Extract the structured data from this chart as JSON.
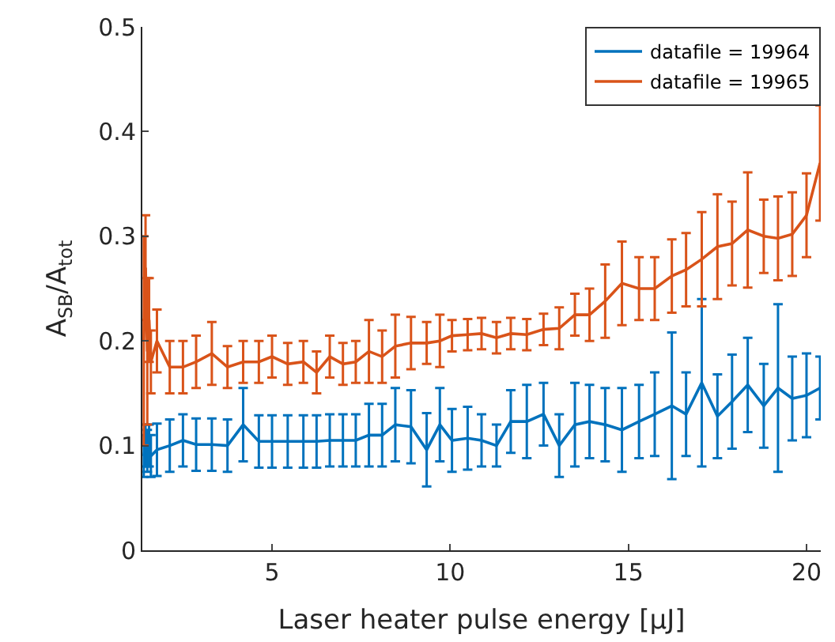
{
  "chart_data": {
    "type": "line",
    "xlabel": "Laser heater pulse energy [μJ]",
    "ylabel": "A$_{SB}$/A$_{tot}$",
    "x": [
      1.4,
      1.45,
      1.5,
      1.55,
      1.6,
      1.77,
      2.13,
      2.5,
      2.87,
      3.31,
      3.75,
      4.19,
      4.63,
      5.0,
      5.44,
      5.88,
      6.25,
      6.62,
      6.99,
      7.35,
      7.72,
      8.09,
      8.46,
      8.9,
      9.34,
      9.71,
      10.05,
      10.49,
      10.88,
      11.3,
      11.7,
      12.15,
      12.62,
      13.06,
      13.5,
      13.91,
      14.35,
      14.82,
      15.3,
      15.74,
      16.22,
      16.62,
      17.06,
      17.5,
      17.91,
      18.35,
      18.8,
      19.2,
      19.6,
      20.0,
      20.38
    ],
    "series": [
      {
        "name": "datafile = 19964",
        "color": "#0072bd",
        "values": [
          0.09,
          0.1,
          0.095,
          0.1,
          0.09,
          0.096,
          0.1,
          0.105,
          0.101,
          0.101,
          0.1,
          0.12,
          0.104,
          0.104,
          0.104,
          0.104,
          0.104,
          0.105,
          0.105,
          0.105,
          0.11,
          0.11,
          0.12,
          0.118,
          0.096,
          0.12,
          0.105,
          0.107,
          0.105,
          0.1,
          0.123,
          0.123,
          0.13,
          0.1,
          0.12,
          0.123,
          0.12,
          0.115,
          0.123,
          0.13,
          0.138,
          0.13,
          0.16,
          0.128,
          0.142,
          0.158,
          0.138,
          0.155,
          0.145,
          0.148,
          0.155
        ],
        "errors": [
          0.02,
          0.02,
          0.02,
          0.02,
          0.02,
          0.025,
          0.025,
          0.025,
          0.025,
          0.025,
          0.025,
          0.035,
          0.025,
          0.025,
          0.025,
          0.025,
          0.025,
          0.025,
          0.025,
          0.025,
          0.03,
          0.03,
          0.035,
          0.035,
          0.035,
          0.035,
          0.03,
          0.03,
          0.025,
          0.02,
          0.03,
          0.035,
          0.03,
          0.03,
          0.04,
          0.035,
          0.035,
          0.04,
          0.035,
          0.04,
          0.07,
          0.04,
          0.08,
          0.04,
          0.045,
          0.045,
          0.04,
          0.08,
          0.04,
          0.04,
          0.03
        ]
      },
      {
        "name": "datafile = 19965",
        "color": "#d95319",
        "values": [
          0.2,
          0.27,
          0.19,
          0.22,
          0.18,
          0.2,
          0.175,
          0.175,
          0.18,
          0.188,
          0.175,
          0.18,
          0.18,
          0.185,
          0.178,
          0.18,
          0.17,
          0.185,
          0.178,
          0.18,
          0.19,
          0.185,
          0.195,
          0.198,
          0.198,
          0.2,
          0.205,
          0.206,
          0.207,
          0.203,
          0.207,
          0.206,
          0.211,
          0.212,
          0.225,
          0.225,
          0.238,
          0.255,
          0.25,
          0.25,
          0.262,
          0.268,
          0.278,
          0.29,
          0.293,
          0.306,
          0.3,
          0.298,
          0.302,
          0.32,
          0.37
        ],
        "errors": [
          0.1,
          0.05,
          0.07,
          0.04,
          0.03,
          0.03,
          0.025,
          0.025,
          0.025,
          0.03,
          0.02,
          0.02,
          0.02,
          0.02,
          0.02,
          0.02,
          0.02,
          0.02,
          0.02,
          0.02,
          0.03,
          0.025,
          0.03,
          0.025,
          0.02,
          0.025,
          0.015,
          0.015,
          0.015,
          0.015,
          0.015,
          0.015,
          0.015,
          0.02,
          0.02,
          0.025,
          0.035,
          0.04,
          0.03,
          0.03,
          0.035,
          0.035,
          0.045,
          0.05,
          0.04,
          0.055,
          0.035,
          0.04,
          0.04,
          0.04,
          0.055
        ]
      }
    ],
    "xlim": [
      1.36,
      20.4
    ],
    "xticks": [
      5,
      10,
      15,
      20
    ],
    "ylim": [
      0,
      0.5
    ],
    "yticks": [
      0,
      0.1,
      0.2,
      0.3,
      0.4,
      0.5
    ],
    "legend": "top right",
    "marker": "none",
    "line_style": "solid"
  }
}
